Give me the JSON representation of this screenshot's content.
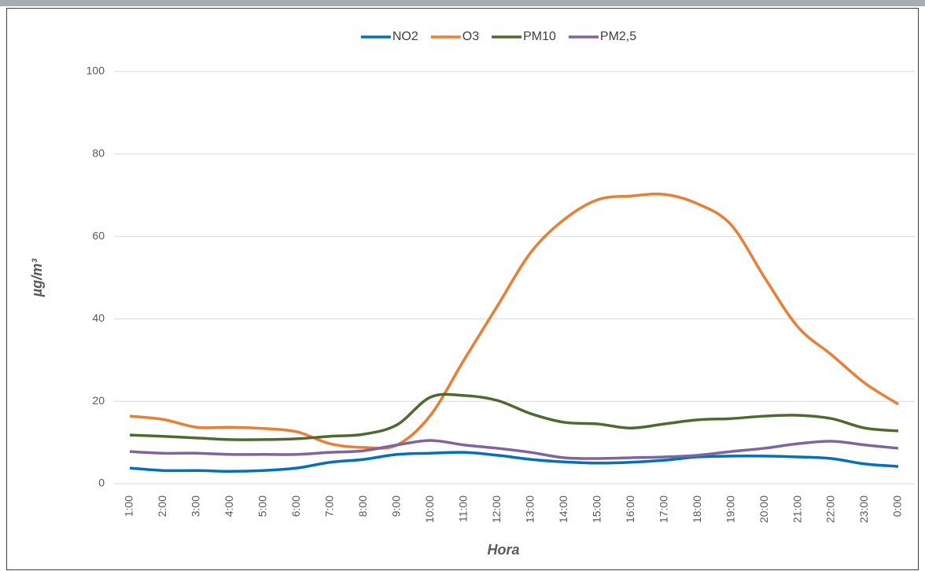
{
  "chart_data": {
    "type": "line",
    "x_label": "Hora",
    "y_label": "µg/m³",
    "categories": [
      "1:00",
      "2:00",
      "3:00",
      "4:00",
      "5:00",
      "6:00",
      "7:00",
      "8:00",
      "9:00",
      "10:00",
      "11:00",
      "12:00",
      "13:00",
      "14:00",
      "15:00",
      "16:00",
      "17:00",
      "18:00",
      "19:00",
      "20:00",
      "21:00",
      "22:00",
      "23:00",
      "0:00"
    ],
    "series": [
      {
        "name": "NO2",
        "color": "#0070c0",
        "values": [
          3.8,
          3.2,
          3.2,
          3.0,
          3.2,
          3.8,
          5.2,
          5.9,
          7.1,
          7.4,
          7.6,
          6.9,
          5.9,
          5.3,
          5.0,
          5.2,
          5.7,
          6.5,
          6.7,
          6.7,
          6.5,
          6.1,
          4.8,
          4.2
        ]
      },
      {
        "name": "O3",
        "color": "#ed7d31",
        "values": [
          16.4,
          15.6,
          13.7,
          13.7,
          13.4,
          12.6,
          9.7,
          8.8,
          9.4,
          16.6,
          30.0,
          43.1,
          56.1,
          64.1,
          68.9,
          69.8,
          70.2,
          67.9,
          62.8,
          50.0,
          38.0,
          31.3,
          24.4,
          19.3
        ]
      },
      {
        "name": "PM10",
        "color": "#4e6b2e",
        "values": [
          11.8,
          11.5,
          11.1,
          10.7,
          10.7,
          10.9,
          11.5,
          12.0,
          14.3,
          21.0,
          21.4,
          20.2,
          17.0,
          14.9,
          14.5,
          13.5,
          14.5,
          15.5,
          15.8,
          16.4,
          16.6,
          15.8,
          13.5,
          12.8
        ]
      },
      {
        "name": "PM2,5",
        "color": "#8064a2",
        "values": [
          7.8,
          7.4,
          7.4,
          7.1,
          7.1,
          7.1,
          7.6,
          8.0,
          9.4,
          10.5,
          9.4,
          8.6,
          7.6,
          6.3,
          6.1,
          6.3,
          6.5,
          6.9,
          7.8,
          8.6,
          9.7,
          10.3,
          9.4,
          8.6
        ]
      }
    ],
    "ylim": [
      0,
      100
    ],
    "yticks": [
      0,
      20,
      40,
      60,
      80,
      100
    ],
    "grid": true,
    "legend": "top"
  }
}
